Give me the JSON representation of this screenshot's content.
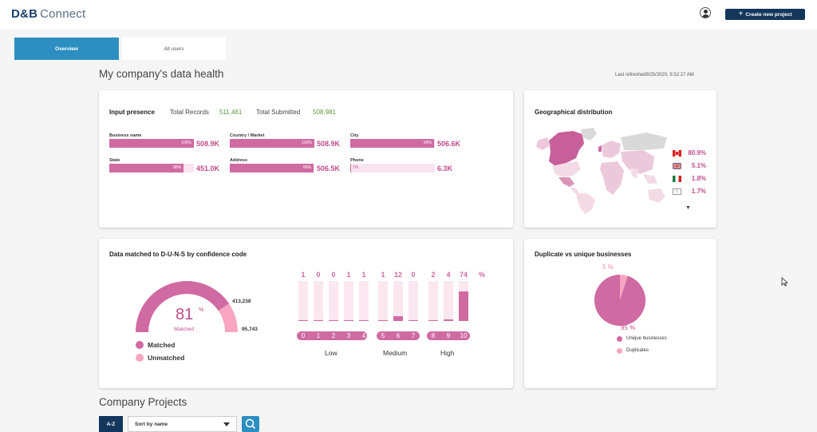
{
  "header": {
    "logo_main": "D&B",
    "logo_sub": "Connect",
    "create_button": "Create new project"
  },
  "tabs": [
    {
      "label": "Overview",
      "active": true
    },
    {
      "label": "All users",
      "active": false
    }
  ],
  "page_title": "My company's data health",
  "last_refreshed_label": "Last refreshed",
  "last_refreshed_value": "9/25/2020, 5:52:27 AM",
  "input_presence": {
    "title": "Input presence",
    "total_records_label": "Total Records",
    "total_records_value": "511,461",
    "total_submitted_label": "Total Submitted",
    "total_submitted_value": "508,981",
    "fields": [
      {
        "label": "Business name",
        "pct": "100%",
        "fill": 100,
        "value": "508.9K"
      },
      {
        "label": "Country / Market",
        "pct": "100%",
        "fill": 100,
        "value": "508.9K"
      },
      {
        "label": "City",
        "pct": "99%",
        "fill": 99,
        "value": "506.6K"
      },
      {
        "label": "State",
        "pct": "88%",
        "fill": 88,
        "value": "451.0K"
      },
      {
        "label": "Address",
        "pct": "99%",
        "fill": 99,
        "value": "506.5K"
      },
      {
        "label": "Phone",
        "pct": "1%",
        "fill": 1,
        "value": "6.3K"
      }
    ]
  },
  "geo": {
    "title": "Geographical distribution",
    "rows": [
      {
        "flag": "ca-flag-icon",
        "value": "80.9%"
      },
      {
        "flag": "uk-flag-icon",
        "value": "5.1%"
      },
      {
        "flag": "mx-flag-icon",
        "value": "1.8%"
      },
      {
        "flag": "unknown-flag-icon",
        "value": "1.7%"
      }
    ],
    "more_caret": "▼"
  },
  "duns": {
    "title": "Data matched to D-U-N-S by confidence code",
    "gauge_pct": "81",
    "gauge_pct_sign": "%",
    "gauge_fill": 81,
    "gauge_label": "Matched",
    "matched_count": "413,238",
    "unmatched_count": "95,743",
    "legend_matched": "Matched",
    "legend_unmatched": "Unmatched",
    "pct_header": "%",
    "codes": [
      {
        "code": "0",
        "pct": "1",
        "fill": 1
      },
      {
        "code": "1",
        "pct": "0",
        "fill": 0
      },
      {
        "code": "2",
        "pct": "0",
        "fill": 0
      },
      {
        "code": "3",
        "pct": "1",
        "fill": 1
      },
      {
        "code": "4",
        "pct": "1",
        "fill": 1
      },
      {
        "code": "5",
        "pct": "1",
        "fill": 1
      },
      {
        "code": "6",
        "pct": "12",
        "fill": 12
      },
      {
        "code": "7",
        "pct": "0",
        "fill": 0
      },
      {
        "code": "8",
        "pct": "2",
        "fill": 2
      },
      {
        "code": "9",
        "pct": "4",
        "fill": 4
      },
      {
        "code": "10",
        "pct": "74",
        "fill": 74
      }
    ],
    "groups": [
      "Low",
      "Medium",
      "High"
    ]
  },
  "duplicates": {
    "title": "Duplicate vs unique businesses",
    "duplicates_pct": "5 %",
    "unique_pct": "95 %",
    "unique_fraction": 0.95,
    "legend_unique": "Unique businesses",
    "legend_duplicates": "Duplicates"
  },
  "projects": {
    "title": "Company Projects",
    "az_label": "A-Z",
    "sort_label": "Sort by name"
  },
  "colors": {
    "accent": "#d06aa2",
    "accent_light": "#f7a5c1",
    "navy": "#13365c",
    "blue": "#2d8ec1",
    "green": "#5f9744"
  }
}
